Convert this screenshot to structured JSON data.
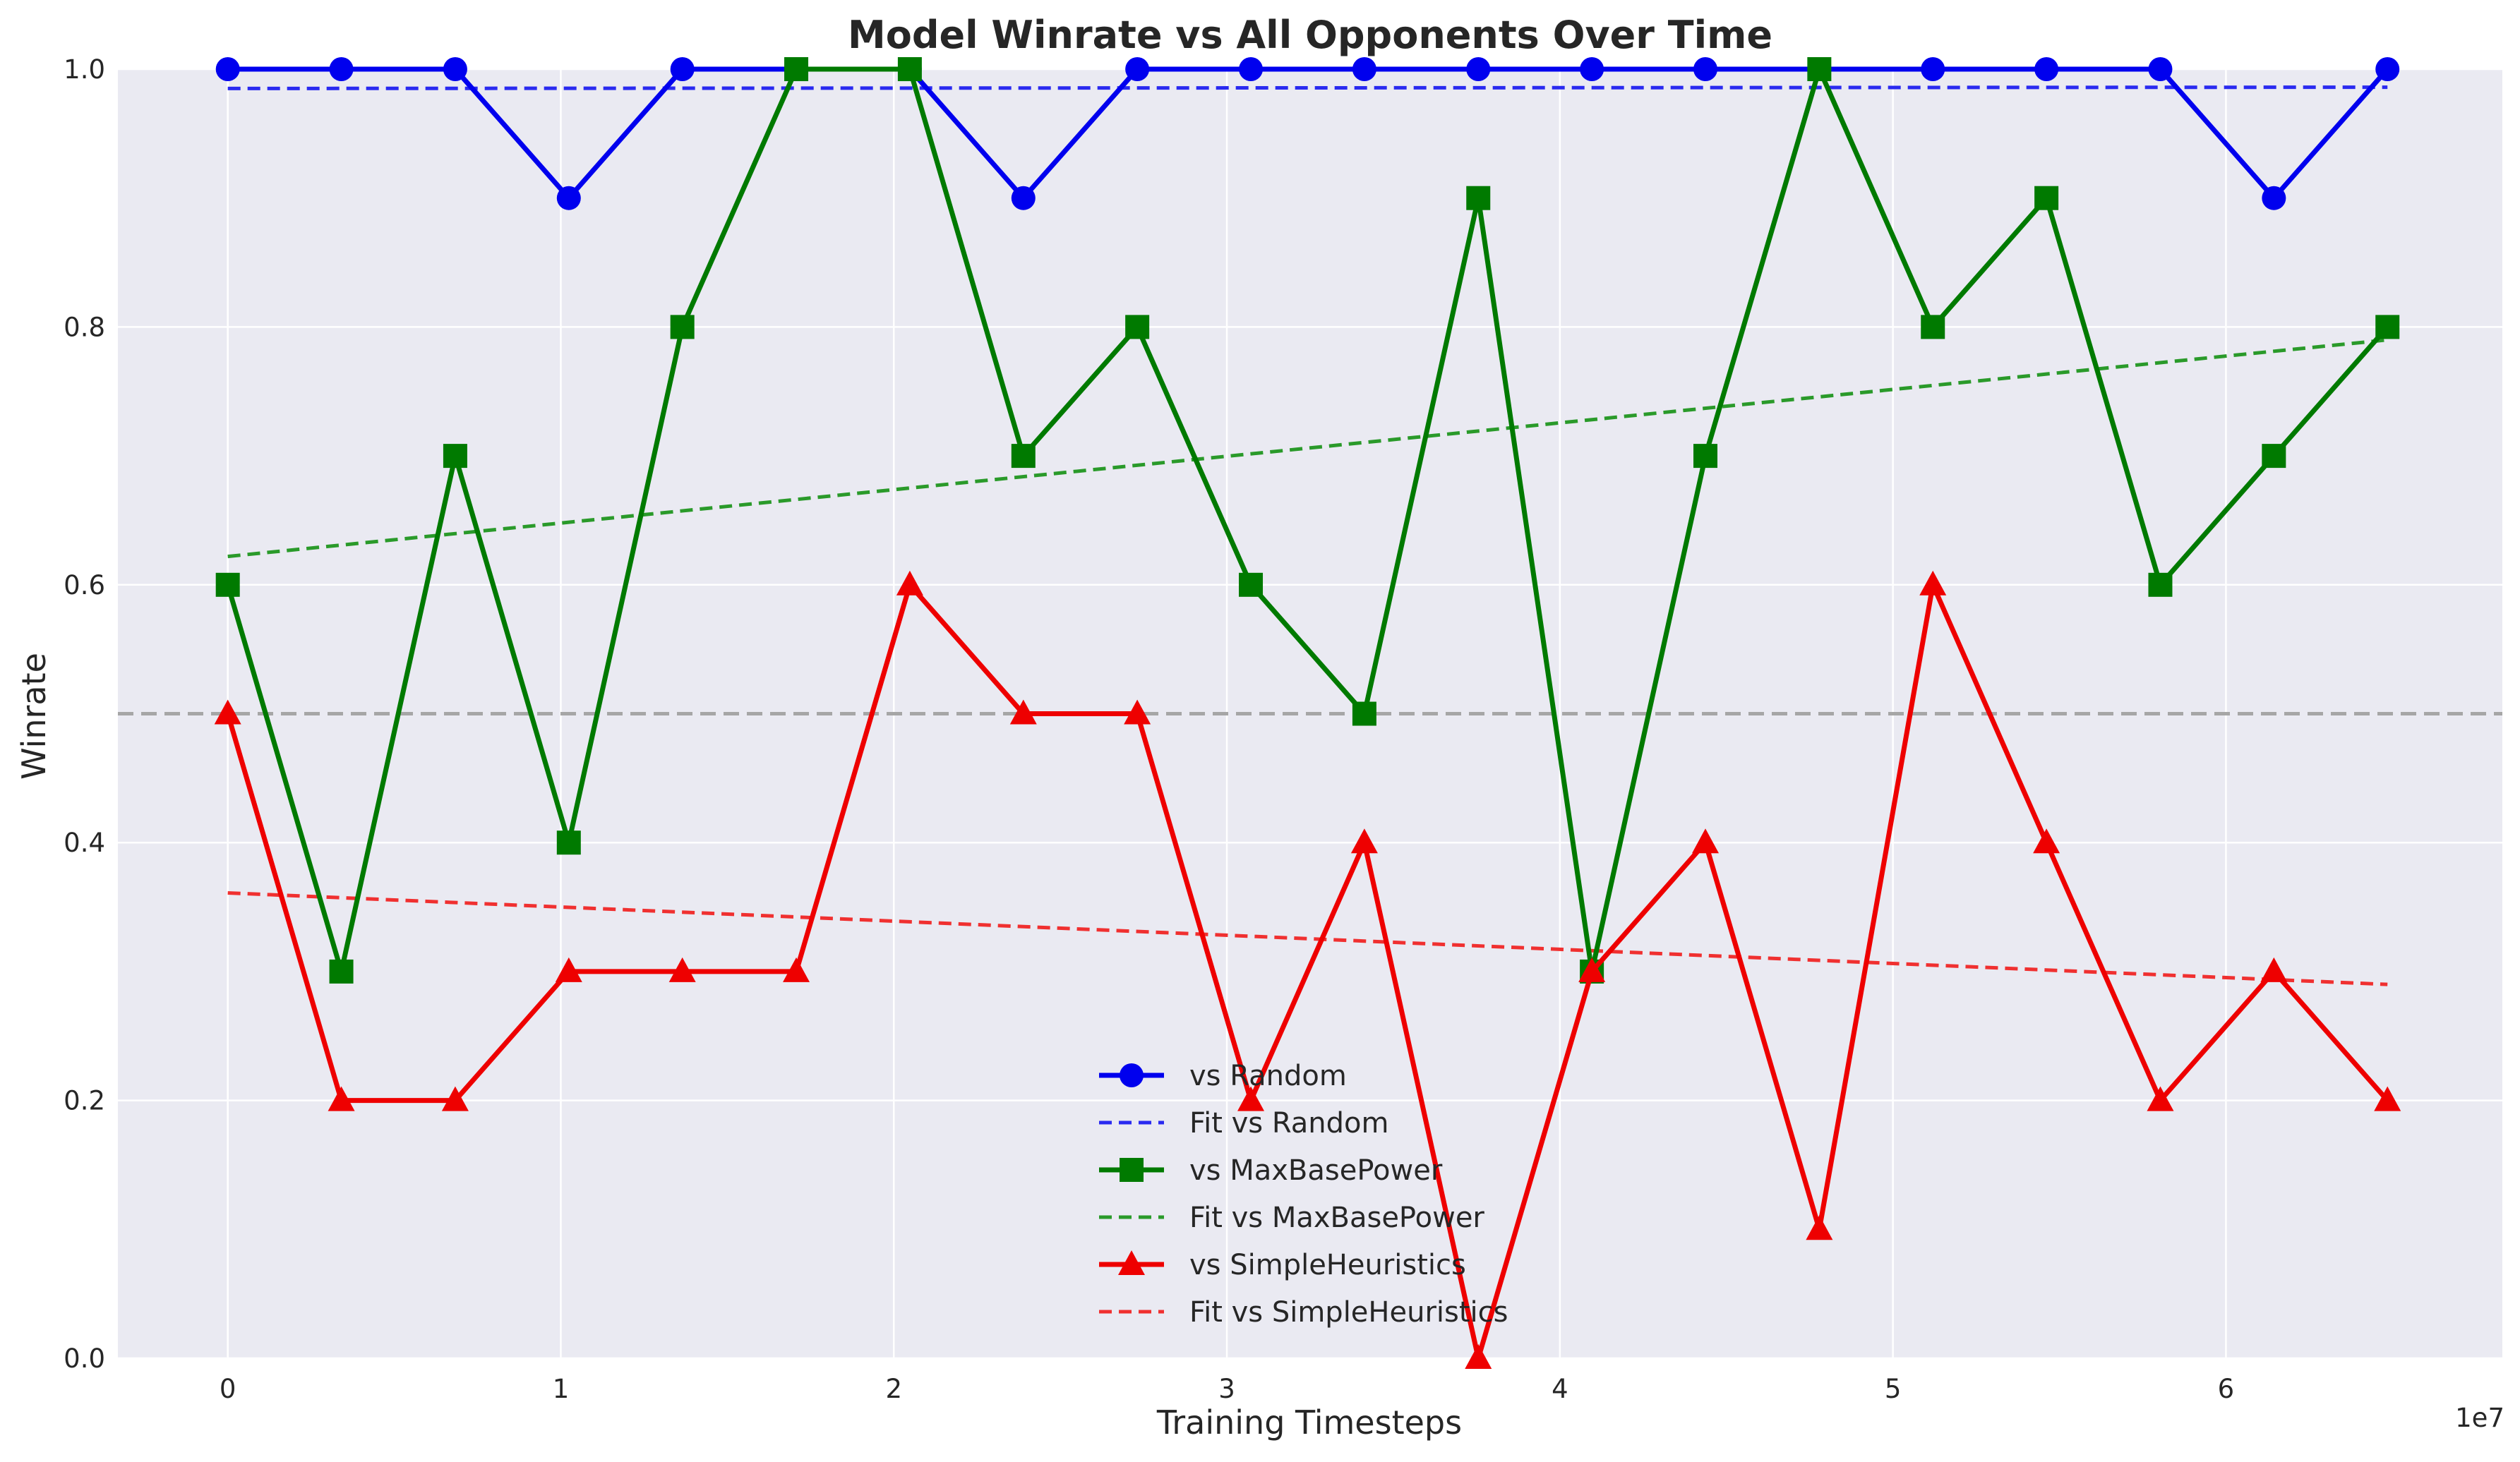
{
  "chart_data": {
    "type": "line",
    "title": "Model Winrate vs All Opponents Over Time",
    "xlabel": "Training Timesteps",
    "ylabel": "Winrate",
    "x_offset_label": "1e7",
    "xlim": [
      -0.33,
      6.83
    ],
    "ylim": [
      0,
      1
    ],
    "x_ticks": [
      0,
      1,
      2,
      3,
      4,
      5,
      6
    ],
    "x_tick_labels": [
      "0",
      "1",
      "2",
      "3",
      "4",
      "5",
      "6"
    ],
    "y_ticks": [
      0,
      0.2,
      0.4,
      0.6,
      0.8,
      1.0
    ],
    "y_tick_labels": [
      "0.0",
      "0.2",
      "0.4",
      "0.6",
      "0.8",
      "1.0"
    ],
    "grid": true,
    "reference_line": {
      "y": 0.5,
      "color": "#a6a6a6"
    },
    "legend_position": "lower center",
    "x": [
      0,
      0.341,
      0.683,
      1.024,
      1.365,
      1.707,
      2.048,
      2.389,
      2.731,
      3.072,
      3.413,
      3.755,
      4.096,
      4.437,
      4.779,
      5.12,
      5.461,
      5.803,
      6.144,
      6.485
    ],
    "series": [
      {
        "name": "vs Random",
        "color": "#0000ee",
        "marker": "circle",
        "values": [
          1.0,
          1.0,
          1.0,
          0.9,
          1.0,
          1.0,
          1.0,
          0.9,
          1.0,
          1.0,
          1.0,
          1.0,
          1.0,
          1.0,
          1.0,
          1.0,
          1.0,
          1.0,
          0.9,
          1.0
        ]
      },
      {
        "name": "vs MaxBasePower",
        "color": "#007a00",
        "marker": "square",
        "values": [
          0.6,
          0.3,
          0.7,
          0.4,
          0.8,
          1.0,
          1.0,
          0.7,
          0.8,
          0.6,
          0.5,
          0.9,
          0.3,
          0.7,
          1.0,
          0.8,
          0.9,
          0.6,
          0.7,
          0.8
        ]
      },
      {
        "name": "vs SimpleHeuristics",
        "color": "#ee0000",
        "marker": "triangle",
        "values": [
          0.5,
          0.2,
          0.2,
          0.3,
          0.3,
          0.3,
          0.6,
          0.5,
          0.5,
          0.2,
          0.4,
          0.0,
          0.3,
          0.4,
          0.1,
          0.6,
          0.4,
          0.2,
          0.3,
          0.2
        ]
      }
    ],
    "fits": [
      {
        "name": "Fit vs Random",
        "color": "#2a2af0",
        "x": [
          0,
          6.485
        ],
        "y": [
          0.985,
          0.986
        ]
      },
      {
        "name": "Fit vs MaxBasePower",
        "color": "#2a9a2a",
        "x": [
          0,
          6.485
        ],
        "y": [
          0.622,
          0.79
        ]
      },
      {
        "name": "Fit vs SimpleHeuristics",
        "color": "#f03030",
        "x": [
          0,
          6.485
        ],
        "y": [
          0.361,
          0.29
        ]
      }
    ],
    "legend_entries": [
      "vs Random",
      "Fit vs Random",
      "vs MaxBasePower",
      "Fit vs MaxBasePower",
      "vs SimpleHeuristics",
      "Fit vs SimpleHeuristics"
    ]
  }
}
